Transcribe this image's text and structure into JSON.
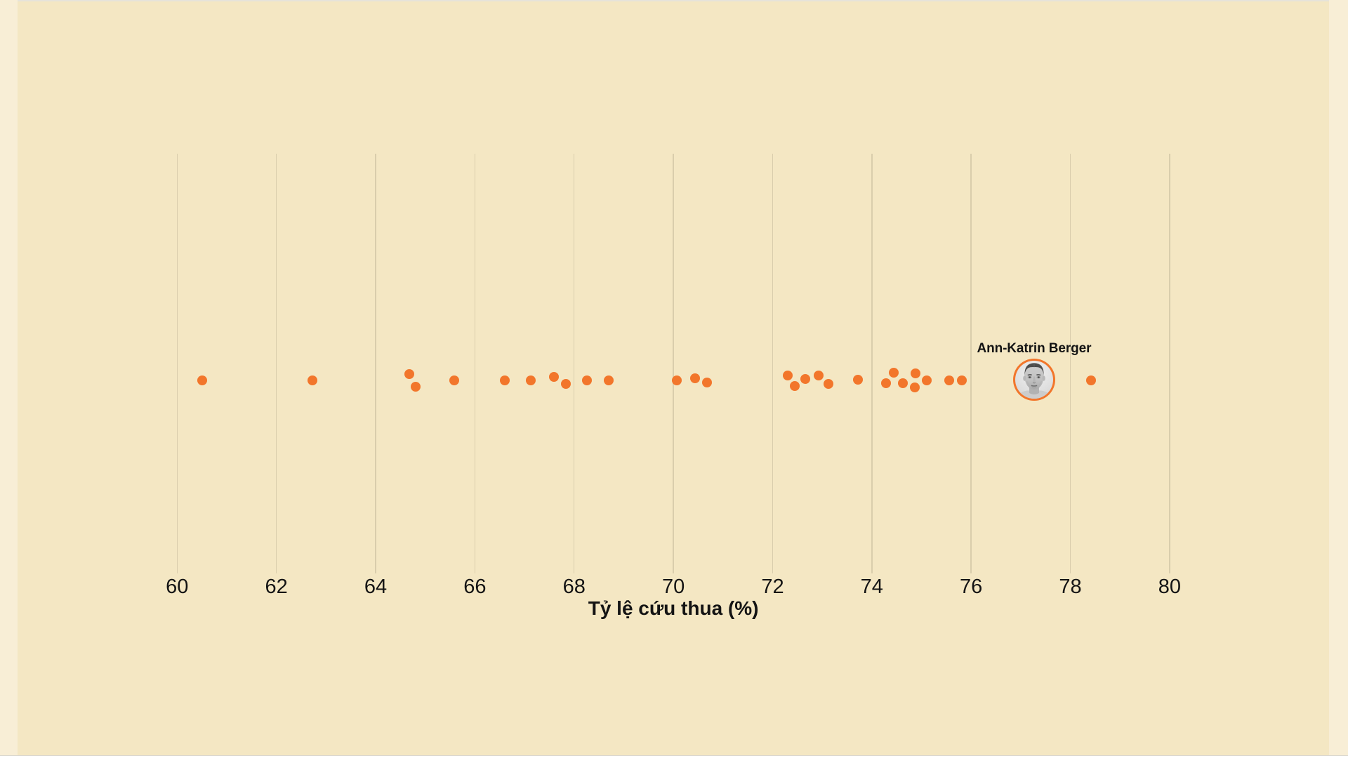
{
  "colors": {
    "background": "#F4E7C3",
    "edge_background": "#F8EED6",
    "top_line": "#E6E3DA",
    "bottom_bar": "#FFFFFF",
    "gridline": "#D9CDAC",
    "dot": "#F2762B",
    "text": "#141414"
  },
  "chart_data": {
    "type": "scatter",
    "title": "",
    "xlabel": "Tỷ lệ cứu thua (%)",
    "ylabel": "",
    "xlim": [
      60,
      80
    ],
    "tick_step": 2,
    "grid": true,
    "legend": false,
    "points": [
      {
        "v": 60.5,
        "j": 0
      },
      {
        "v": 62.73,
        "j": 0
      },
      {
        "v": 64.68,
        "j": -9
      },
      {
        "v": 64.8,
        "j": 9
      },
      {
        "v": 65.59,
        "j": 0
      },
      {
        "v": 66.6,
        "j": 0
      },
      {
        "v": 67.12,
        "j": 0
      },
      {
        "v": 67.59,
        "j": -5
      },
      {
        "v": 67.83,
        "j": 5
      },
      {
        "v": 68.26,
        "j": 0
      },
      {
        "v": 68.7,
        "j": 0
      },
      {
        "v": 70.07,
        "j": 0
      },
      {
        "v": 70.44,
        "j": -3
      },
      {
        "v": 70.68,
        "j": 3
      },
      {
        "v": 72.3,
        "j": -7
      },
      {
        "v": 72.44,
        "j": 8
      },
      {
        "v": 72.66,
        "j": -2
      },
      {
        "v": 72.93,
        "j": -7
      },
      {
        "v": 73.13,
        "j": 5
      },
      {
        "v": 73.72,
        "j": -1
      },
      {
        "v": 74.29,
        "j": 4
      },
      {
        "v": 74.44,
        "j": -11
      },
      {
        "v": 74.63,
        "j": 4
      },
      {
        "v": 74.88,
        "j": -10
      },
      {
        "v": 74.86,
        "j": 10
      },
      {
        "v": 75.1,
        "j": 0
      },
      {
        "v": 75.56,
        "j": 0
      },
      {
        "v": 75.82,
        "j": 0
      },
      {
        "v": 78.42,
        "j": 0
      }
    ],
    "highlight": {
      "label": "Ann-Katrin Berger",
      "value": 77.27
    }
  }
}
